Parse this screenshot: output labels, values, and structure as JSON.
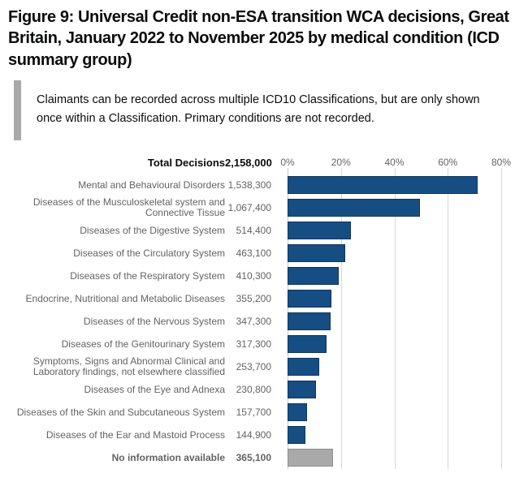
{
  "title": "Figure 9: Universal Credit non-ESA transition WCA decisions, Great Britain, January 2022 to November 2025 by medical condition (ICD summary group)",
  "callout": {
    "text": "Claimants can be recorded across multiple ICD10 Classifications, but are only shown once within a Classification. Primary conditions are not recorded."
  },
  "colors": {
    "bar_blue": "#164e83",
    "bar_blue_border": "#10355e",
    "bar_grey": "#a9a9a9",
    "bar_grey_border": "#8f8f8f",
    "callout_rule": "#a9a9a9",
    "gridline": "#d7d7d7",
    "label_grey": "#636363",
    "text_black": "#0b0c0c"
  },
  "chart_data": {
    "type": "bar",
    "orientation": "horizontal",
    "total_label": "Total Decisions",
    "total_value": 2158000,
    "total_value_display": "2,158,000",
    "axis_ticks": [
      "0%",
      "20%",
      "40%",
      "60%",
      "80%"
    ],
    "axis_tick_values": [
      0,
      20,
      40,
      60,
      80
    ],
    "xlim": [
      0,
      88
    ],
    "grid": true,
    "unit": "percent of total decisions",
    "categories": [
      "Mental and Behavioural Disorders",
      "Diseases of the Musculoskeletal system and Connective Tissue",
      "Diseases of the Digestive System",
      "Diseases of the Circulatory System",
      "Diseases of the Respiratory System",
      "Endocrine, Nutritional and Metabolic Diseases",
      "Diseases of the Nervous System",
      "Diseases of the Genitourinary System",
      "Symptoms, Signs and Abnormal Clinical and Laboratory findings, not elsewhere classified",
      "Diseases of the Eye and Adnexa",
      "Diseases of the Skin and Subcutaneous System",
      "Diseases of the Ear and Mastoid Process",
      "No information available"
    ],
    "values": [
      1538300,
      1067400,
      514400,
      463100,
      410300,
      355200,
      347300,
      317300,
      253700,
      230800,
      157700,
      144900,
      365100
    ],
    "rows": [
      {
        "label": "Mental and Behavioural Disorders",
        "value": 1538300,
        "display": "1,538,300",
        "grey": false,
        "bold": false
      },
      {
        "label": "Diseases of the Musculoskeletal system and Connective Tissue",
        "value": 1067400,
        "display": "1,067,400",
        "grey": false,
        "bold": false
      },
      {
        "label": "Diseases of the Digestive System",
        "value": 514400,
        "display": "514,400",
        "grey": false,
        "bold": false
      },
      {
        "label": "Diseases of the Circulatory System",
        "value": 463100,
        "display": "463,100",
        "grey": false,
        "bold": false
      },
      {
        "label": "Diseases of the Respiratory System",
        "value": 410300,
        "display": "410,300",
        "grey": false,
        "bold": false
      },
      {
        "label": "Endocrine, Nutritional and Metabolic Diseases",
        "value": 355200,
        "display": "355,200",
        "grey": false,
        "bold": false
      },
      {
        "label": "Diseases of the Nervous System",
        "value": 347300,
        "display": "347,300",
        "grey": false,
        "bold": false
      },
      {
        "label": "Diseases of the Genitourinary System",
        "value": 317300,
        "display": "317,300",
        "grey": false,
        "bold": false
      },
      {
        "label": "Symptoms, Signs and Abnormal Clinical and Laboratory findings, not elsewhere classified",
        "value": 253700,
        "display": "253,700",
        "grey": false,
        "bold": false
      },
      {
        "label": "Diseases of the Eye and Adnexa",
        "value": 230800,
        "display": "230,800",
        "grey": false,
        "bold": false
      },
      {
        "label": "Diseases of the Skin and Subcutaneous System",
        "value": 157700,
        "display": "157,700",
        "grey": false,
        "bold": false
      },
      {
        "label": "Diseases of the Ear and Mastoid Process",
        "value": 144900,
        "display": "144,900",
        "grey": false,
        "bold": false
      },
      {
        "label": "No information available",
        "value": 365100,
        "display": "365,100",
        "grey": true,
        "bold": true
      }
    ]
  }
}
